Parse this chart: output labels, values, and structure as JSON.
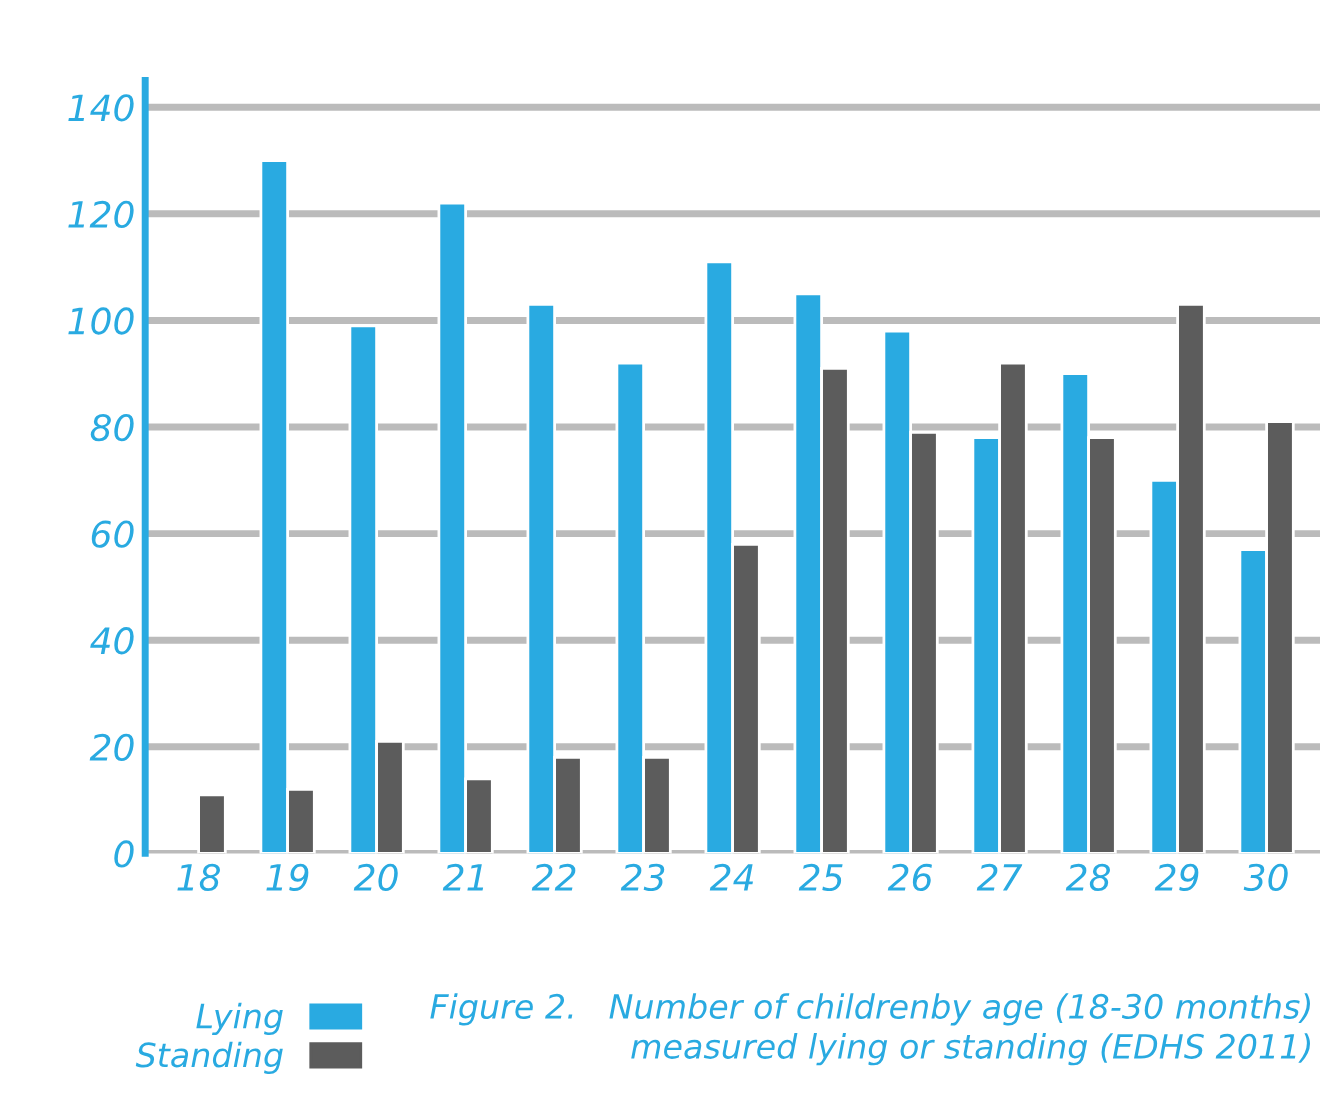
{
  "chart_data": {
    "type": "bar",
    "title": "Figure 2.   Number of childrenby age (18-30 months)\nmeasured lying or standing (EDHS 2011)",
    "categories": [
      "18",
      "19",
      "20",
      "21",
      "22",
      "23",
      "24",
      "25",
      "26",
      "27",
      "28",
      "29",
      "30"
    ],
    "series": [
      {
        "name": "Lying",
        "color": "#29aae1",
        "values": [
          null,
          130,
          99,
          122,
          103,
          92,
          111,
          105,
          98,
          78,
          90,
          70,
          57
        ]
      },
      {
        "name": "Standing",
        "color": "#5c5c5c",
        "values": [
          11,
          12,
          21,
          14,
          18,
          18,
          58,
          91,
          79,
          92,
          78,
          103,
          81
        ]
      }
    ],
    "ylim": [
      0,
      145
    ],
    "yticks": [
      0,
      20,
      40,
      60,
      80,
      100,
      120,
      140
    ],
    "grid": "y",
    "legend": "bottom left"
  }
}
